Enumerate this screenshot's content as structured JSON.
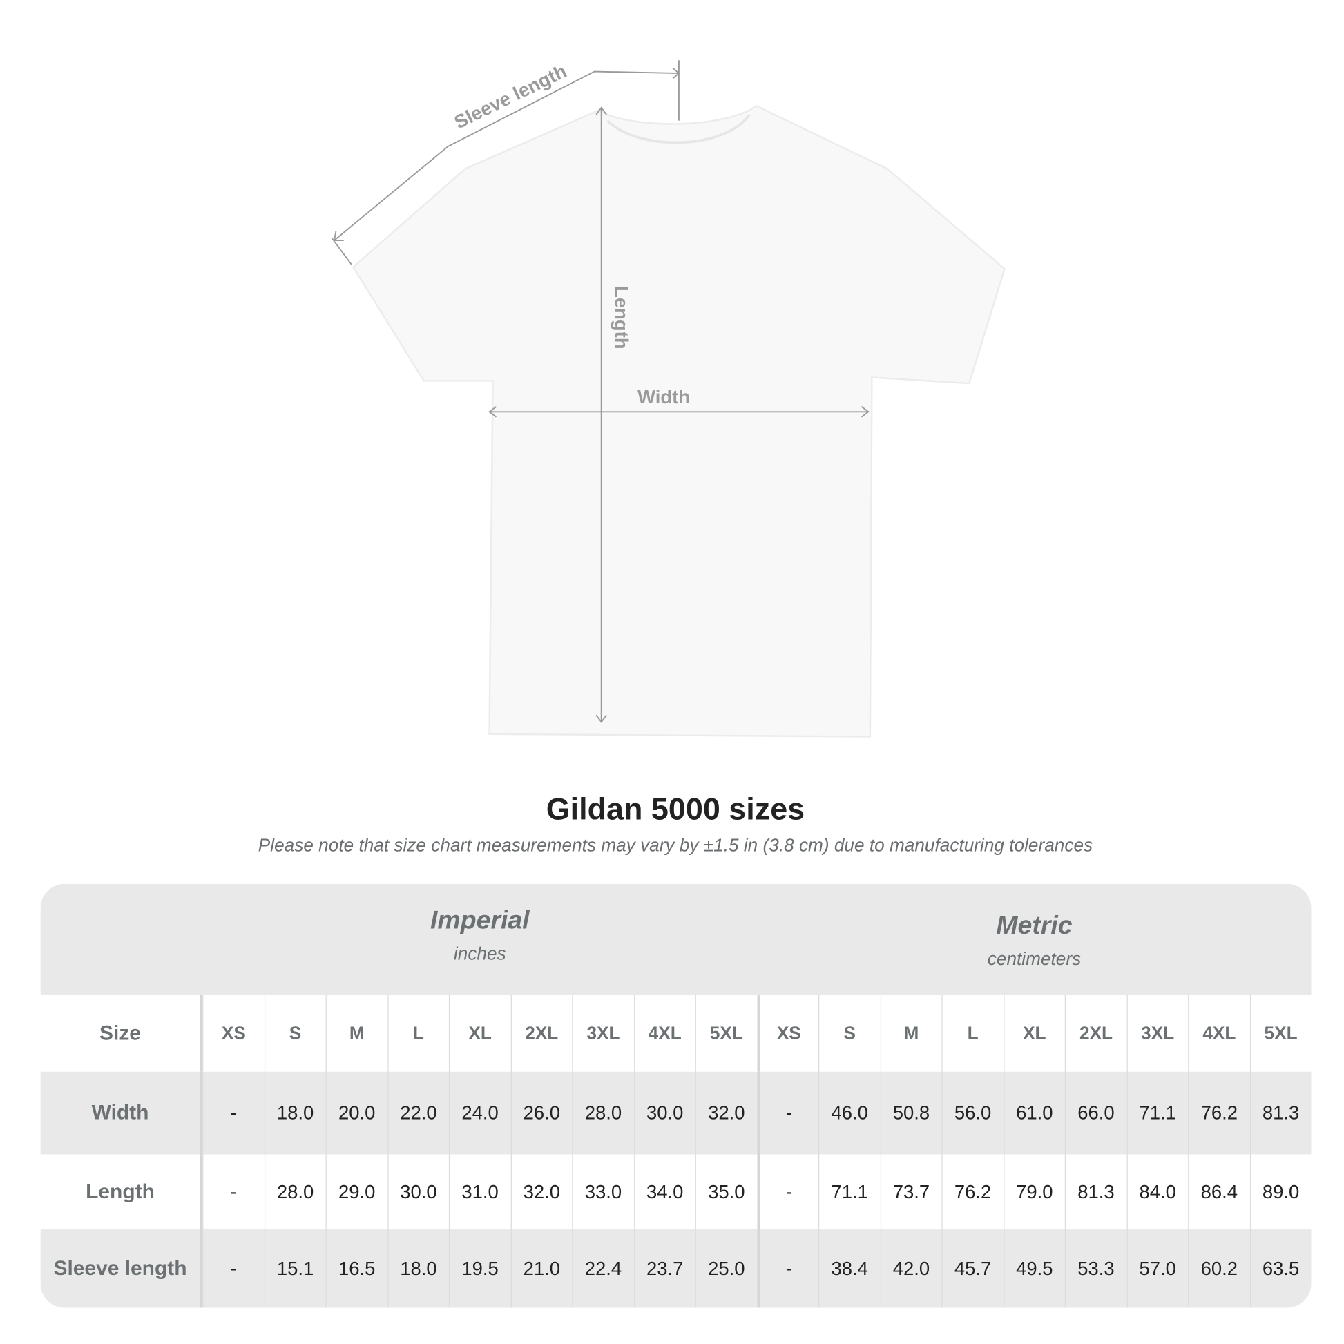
{
  "diagram": {
    "labels": {
      "sleeve": "Sleeve length",
      "length": "Length",
      "width": "Width"
    },
    "colors": {
      "shirt": "#f8f8f8",
      "lines": "#9a9a9a"
    }
  },
  "title": "Gildan 5000 sizes",
  "subtitle": "Please note that size chart measurements may vary by ±1.5 in (3.8 cm) due to manufacturing tolerances",
  "table": {
    "imperial": {
      "name": "Imperial",
      "unit": "inches"
    },
    "metric": {
      "name": "Metric",
      "unit": "centimeters"
    },
    "size_label": "Size",
    "sizes": [
      "XS",
      "S",
      "M",
      "L",
      "XL",
      "2XL",
      "3XL",
      "4XL",
      "5XL"
    ],
    "rows": [
      {
        "label": "Width",
        "imperial": [
          "-",
          "18.0",
          "20.0",
          "22.0",
          "24.0",
          "26.0",
          "28.0",
          "30.0",
          "32.0"
        ],
        "metric": [
          "-",
          "46.0",
          "50.8",
          "56.0",
          "61.0",
          "66.0",
          "71.1",
          "76.2",
          "81.3"
        ]
      },
      {
        "label": "Length",
        "imperial": [
          "-",
          "28.0",
          "29.0",
          "30.0",
          "31.0",
          "32.0",
          "33.0",
          "34.0",
          "35.0"
        ],
        "metric": [
          "-",
          "71.1",
          "73.7",
          "76.2",
          "79.0",
          "81.3",
          "84.0",
          "86.4",
          "89.0"
        ]
      },
      {
        "label": "Sleeve length",
        "imperial": [
          "-",
          "15.1",
          "16.5",
          "18.0",
          "19.5",
          "21.0",
          "22.4",
          "23.7",
          "25.0"
        ],
        "metric": [
          "-",
          "38.4",
          "42.0",
          "45.7",
          "49.5",
          "53.3",
          "57.0",
          "60.2",
          "63.5"
        ]
      }
    ]
  }
}
